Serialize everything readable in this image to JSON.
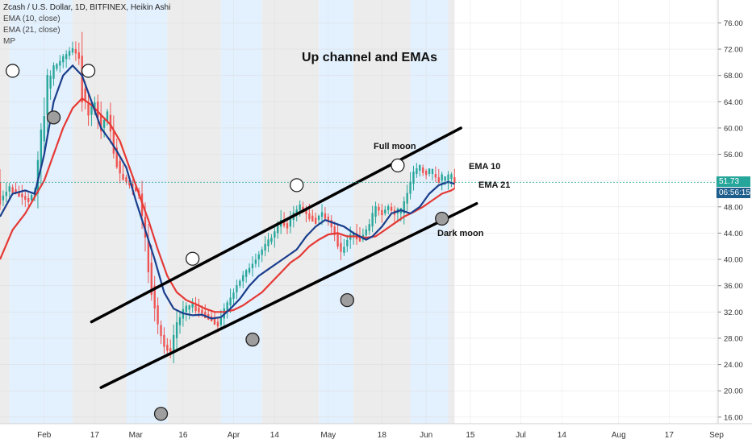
{
  "legend": {
    "title": "Zcash / U.S. Dollar, 1D, BITFINEX, Heikin Ashi",
    "ema10": "EMA (10, close)",
    "ema21": "EMA (21, close)",
    "mp": "MP"
  },
  "price_tags": {
    "last_price": "51.73",
    "countdown": "06:56:15"
  },
  "colors": {
    "up_candle": "#26a69a",
    "down_candle": "#ef5350",
    "ema10": "#1a3e8c",
    "ema21": "#e53935",
    "channel": "#000000",
    "band_grey": "#ececec",
    "band_blue": "#e3f0fd",
    "last_price_tag": "#26a69a",
    "countdown_tag": "#1d5e8c"
  },
  "chart_data": {
    "type": "candlestick",
    "title": "Up channel and EMAs",
    "y_ticks": [
      "76.00",
      "72.00",
      "68.00",
      "64.00",
      "60.00",
      "56.00",
      "52.00",
      "48.00",
      "44.00",
      "40.00",
      "36.00",
      "32.00",
      "28.00",
      "24.00",
      "20.00",
      "16.00"
    ],
    "ylim": [
      15.0,
      78.5
    ],
    "x_ticks": [
      {
        "label": "Feb",
        "day": 0
      },
      {
        "label": "17",
        "day": 16
      },
      {
        "label": "Mar",
        "day": 29
      },
      {
        "label": "16",
        "day": 44
      },
      {
        "label": "Apr",
        "day": 60
      },
      {
        "label": "14",
        "day": 73
      },
      {
        "label": "May",
        "day": 90
      },
      {
        "label": "18",
        "day": 107
      },
      {
        "label": "Jun",
        "day": 121
      },
      {
        "label": "15",
        "day": 135
      },
      {
        "label": "Jul",
        "day": 151
      },
      {
        "label": "14",
        "day": 164
      },
      {
        "label": "Aug",
        "day": 182
      },
      {
        "label": "17",
        "day": 198
      },
      {
        "label": "Sep",
        "day": 213
      }
    ],
    "xlim": [
      -14,
      213.5
    ],
    "last_day": 130,
    "last_price": 51.73,
    "ema10_points": [
      [
        -14,
        46.5
      ],
      [
        -10,
        50
      ],
      [
        -6,
        50.5
      ],
      [
        -3,
        50
      ],
      [
        0,
        56
      ],
      [
        3,
        64
      ],
      [
        6,
        68
      ],
      [
        9,
        69.5
      ],
      [
        12,
        68
      ],
      [
        15,
        64
      ],
      [
        18,
        60
      ],
      [
        21,
        58
      ],
      [
        23,
        56.5
      ],
      [
        26,
        54
      ],
      [
        29,
        49
      ],
      [
        32,
        44.5
      ],
      [
        35,
        40
      ],
      [
        38,
        35
      ],
      [
        41,
        32.5
      ],
      [
        44,
        31.8
      ],
      [
        47,
        31.5
      ],
      [
        50,
        31.6
      ],
      [
        53,
        31
      ],
      [
        56,
        31.2
      ],
      [
        59,
        32.5
      ],
      [
        62,
        34
      ],
      [
        65,
        36
      ],
      [
        68,
        37.5
      ],
      [
        71,
        38.5
      ],
      [
        74,
        39.5
      ],
      [
        77,
        40.5
      ],
      [
        80,
        41.5
      ],
      [
        83,
        43.5
      ],
      [
        86,
        45
      ],
      [
        89,
        46
      ],
      [
        92,
        45.5
      ],
      [
        95,
        45
      ],
      [
        98,
        44
      ],
      [
        100,
        43.5
      ],
      [
        102,
        43
      ],
      [
        104,
        43.5
      ],
      [
        107,
        45
      ],
      [
        110,
        47
      ],
      [
        113,
        47.5
      ],
      [
        116,
        47
      ],
      [
        119,
        48
      ],
      [
        122,
        50
      ],
      [
        125,
        51.3
      ],
      [
        128,
        51.8
      ],
      [
        130,
        51.5
      ]
    ],
    "ema21_points": [
      [
        -14,
        40
      ],
      [
        -10,
        44.5
      ],
      [
        -6,
        47
      ],
      [
        -3,
        49.5
      ],
      [
        0,
        52
      ],
      [
        3,
        56
      ],
      [
        6,
        60
      ],
      [
        9,
        63
      ],
      [
        12,
        64.5
      ],
      [
        15,
        63.5
      ],
      [
        18,
        62
      ],
      [
        21,
        60.5
      ],
      [
        24,
        58
      ],
      [
        27,
        54
      ],
      [
        30,
        50
      ],
      [
        33,
        46
      ],
      [
        36,
        41.5
      ],
      [
        39,
        37.5
      ],
      [
        42,
        35
      ],
      [
        45,
        33.8
      ],
      [
        48,
        33.2
      ],
      [
        51,
        32.5
      ],
      [
        54,
        32
      ],
      [
        57,
        32
      ],
      [
        60,
        32.3
      ],
      [
        63,
        33
      ],
      [
        66,
        34
      ],
      [
        69,
        35
      ],
      [
        72,
        36.5
      ],
      [
        75,
        38
      ],
      [
        78,
        39.5
      ],
      [
        81,
        40.5
      ],
      [
        84,
        42
      ],
      [
        87,
        43
      ],
      [
        90,
        43.8
      ],
      [
        93,
        44
      ],
      [
        96,
        43.5
      ],
      [
        99,
        43.5
      ],
      [
        102,
        43.3
      ],
      [
        105,
        43.5
      ],
      [
        108,
        44.5
      ],
      [
        111,
        45.5
      ],
      [
        114,
        46.5
      ],
      [
        117,
        47.2
      ],
      [
        120,
        48
      ],
      [
        123,
        49
      ],
      [
        126,
        50
      ],
      [
        129,
        50.5
      ],
      [
        130,
        50.8
      ]
    ],
    "candle_trend": [
      [
        -14,
        49
      ],
      [
        -11,
        51
      ],
      [
        -8,
        50
      ],
      [
        -5,
        49
      ],
      [
        -3,
        50
      ],
      [
        -1,
        58
      ],
      [
        1,
        66
      ],
      [
        3,
        69
      ],
      [
        5,
        70
      ],
      [
        7,
        71
      ],
      [
        9,
        72
      ],
      [
        11,
        71
      ],
      [
        12,
        66
      ],
      [
        14,
        62
      ],
      [
        16,
        64
      ],
      [
        18,
        60
      ],
      [
        20,
        62
      ],
      [
        22,
        57
      ],
      [
        24,
        53
      ],
      [
        26,
        52
      ],
      [
        28,
        51
      ],
      [
        30,
        50
      ],
      [
        32,
        43
      ],
      [
        34,
        36
      ],
      [
        36,
        30
      ],
      [
        38,
        27
      ],
      [
        40,
        26
      ],
      [
        42,
        30
      ],
      [
        44,
        32
      ],
      [
        47,
        33
      ],
      [
        50,
        32
      ],
      [
        53,
        31
      ],
      [
        55,
        30
      ],
      [
        57,
        32
      ],
      [
        59,
        34
      ],
      [
        61,
        36
      ],
      [
        64,
        38
      ],
      [
        67,
        40
      ],
      [
        70,
        42
      ],
      [
        73,
        44
      ],
      [
        75,
        46
      ],
      [
        77,
        45
      ],
      [
        79,
        47
      ],
      [
        81,
        48
      ],
      [
        83,
        47
      ],
      [
        86,
        46
      ],
      [
        88,
        47
      ],
      [
        90,
        46
      ],
      [
        92,
        44
      ],
      [
        94,
        41
      ],
      [
        96,
        43
      ],
      [
        98,
        44
      ],
      [
        100,
        43
      ],
      [
        103,
        45
      ],
      [
        105,
        48
      ],
      [
        107,
        47
      ],
      [
        109,
        48
      ],
      [
        111,
        47
      ],
      [
        113,
        47
      ],
      [
        115,
        50
      ],
      [
        117,
        53
      ],
      [
        119,
        54
      ],
      [
        121,
        53
      ],
      [
        123,
        53
      ],
      [
        125,
        52
      ],
      [
        127,
        52
      ],
      [
        129,
        52.5
      ],
      [
        130,
        51.7
      ]
    ],
    "channel_upper": {
      "from": [
        15,
        30.5
      ],
      "to": [
        132,
        60
      ]
    },
    "channel_lower": {
      "from": [
        18,
        20.5
      ],
      "to": [
        137,
        48.5
      ]
    },
    "bands": [
      {
        "from": -14,
        "to": -11,
        "color": "grey"
      },
      {
        "from": -11,
        "to": 9,
        "color": "blue"
      },
      {
        "from": 9,
        "to": 26,
        "color": "grey"
      },
      {
        "from": 26,
        "to": 39,
        "color": "blue"
      },
      {
        "from": 39,
        "to": 56,
        "color": "grey"
      },
      {
        "from": 56,
        "to": 69,
        "color": "blue"
      },
      {
        "from": 69,
        "to": 87,
        "color": "grey"
      },
      {
        "from": 87,
        "to": 98,
        "color": "blue"
      },
      {
        "from": 98,
        "to": 116,
        "color": "grey"
      },
      {
        "from": 116,
        "to": 128,
        "color": "blue"
      },
      {
        "from": 128,
        "to": 130,
        "color": "grey"
      }
    ],
    "moons": [
      {
        "day": -10,
        "price": 68.7,
        "kind": "full"
      },
      {
        "day": 14,
        "price": 68.7,
        "kind": "full"
      },
      {
        "day": 47,
        "price": 40.1,
        "kind": "full"
      },
      {
        "day": 80,
        "price": 51.3,
        "kind": "full"
      },
      {
        "day": 112,
        "price": 54.3,
        "kind": "full"
      },
      {
        "day": 3,
        "price": 61.6,
        "kind": "dark"
      },
      {
        "day": 37,
        "price": 16.5,
        "kind": "dark"
      },
      {
        "day": 66,
        "price": 27.8,
        "kind": "dark"
      },
      {
        "day": 96,
        "price": 33.8,
        "kind": "dark"
      },
      {
        "day": 126,
        "price": 46.2,
        "kind": "dark"
      }
    ],
    "annotations": {
      "full_moon": "Full moon",
      "ema10": "EMA 10",
      "ema21": "EMA 21",
      "dark_moon": "Dark moon"
    }
  }
}
